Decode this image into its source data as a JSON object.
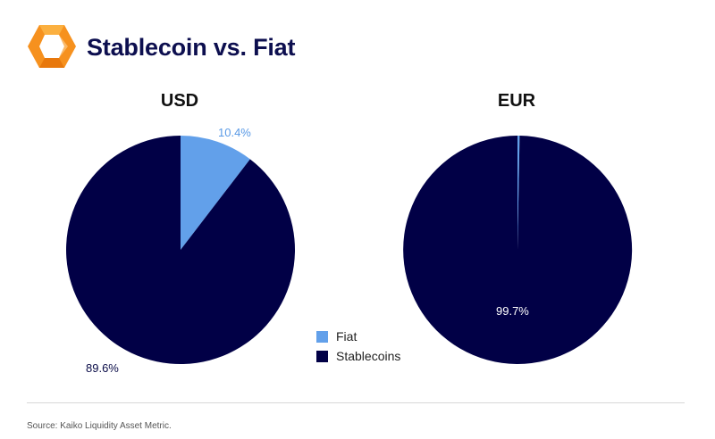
{
  "header": {
    "title": "Stablecoin vs. Fiat",
    "logo_icon": "kaiko-hexagon-logo"
  },
  "colors": {
    "fiat": "#62a0ea",
    "stablecoins": "#010046",
    "title": "#0d0f4f",
    "logo_orange": "#f6911e",
    "logo_light": "#fbb040"
  },
  "chart_data": [
    {
      "type": "pie",
      "title": "USD",
      "categories": [
        "Fiat",
        "Stablecoins"
      ],
      "values": [
        10.4,
        89.6
      ],
      "labels": [
        "10.4%",
        "89.6%"
      ]
    },
    {
      "type": "pie",
      "title": "EUR",
      "categories": [
        "Fiat",
        "Stablecoins"
      ],
      "values": [
        0.3,
        99.7
      ],
      "labels": [
        "",
        "99.7%"
      ]
    }
  ],
  "legend": {
    "placement": "bottom-center",
    "items": [
      {
        "label": "Fiat"
      },
      {
        "label": "Stablecoins"
      }
    ]
  },
  "footer": {
    "source": "Source: Kaiko Liquidity Asset Metric."
  }
}
